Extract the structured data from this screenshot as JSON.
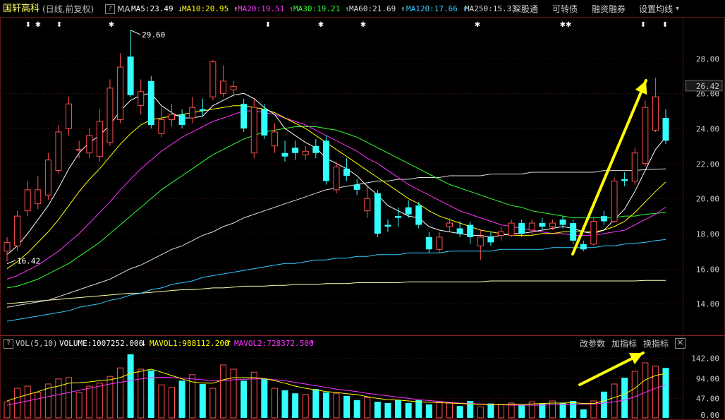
{
  "header": {
    "stock_name": "国轩高科",
    "period": "(日线,前复权)",
    "help_glyph": "?",
    "ma_label": "MA",
    "ma_items": [
      {
        "label": "MA5:23.49",
        "arrow": "↓",
        "color": "#ffffff"
      },
      {
        "label": "MA10:20.95",
        "arrow": "↑",
        "color": "#ffff00"
      },
      {
        "label": "MA20:19.51",
        "arrow": "↑",
        "color": "#ff33ff"
      },
      {
        "label": "MA30:19.21",
        "arrow": "↑",
        "color": "#33ff33"
      },
      {
        "label": "MA60:21.69",
        "arrow": "↑",
        "color": "#dddddd"
      },
      {
        "label": "MA120:17.66",
        "arrow": "↑",
        "color": "#33ccff"
      },
      {
        "label": "MA250:15.33",
        "arrow": "",
        "color": "#dddddd"
      }
    ],
    "buttons": [
      "深股通",
      "可转债",
      "融资融券",
      "设置均线"
    ],
    "dropdown_glyph": "▾"
  },
  "volume_header": {
    "help_glyph": "?",
    "indicator": "VOL(5,10)",
    "volume": "VOLUME:1007252.000",
    "volume_arrow": "↓",
    "mavol1": "MAVOL1:988112.200",
    "mavol1_arrow": "↑",
    "mavol2": "MAVOL2:728372.500",
    "mavol2_arrow": "↑",
    "buttons": [
      "改参数",
      "加指标",
      "换指标"
    ],
    "close_glyph": "✕"
  },
  "colors": {
    "up": "#ff5050",
    "down": "#33ffff",
    "ma5": "#ffffff",
    "ma10": "#ffff00",
    "ma20": "#ff33ff",
    "ma30": "#33ff33",
    "ma60": "#dddddd",
    "ma120": "#33ccff",
    "ma250": "#ffffaa",
    "arrow": "#ffff00",
    "grid": "#5a1818"
  },
  "chart_data": [
    {
      "type": "candlestick",
      "yticks": [
        28.0,
        26.0,
        24.0,
        22.0,
        20.0,
        18.0,
        16.0,
        14.0
      ],
      "ylim": [
        12.4,
        30.2
      ],
      "current_price": "26.42",
      "annotations": {
        "high": "29.60",
        "low": "16.42"
      },
      "event_markers": [
        "⬍",
        "✱",
        "⬍",
        "✱",
        "⬍",
        "✱",
        "✱",
        "✱✱",
        "⬍",
        "⬍"
      ],
      "candles": [
        {
          "o": 17.0,
          "c": 17.5,
          "h": 17.8,
          "l": 16.4
        },
        {
          "o": 17.3,
          "c": 19.0,
          "h": 19.3,
          "l": 17.0
        },
        {
          "o": 19.3,
          "c": 20.5,
          "h": 21.0,
          "l": 19.0
        },
        {
          "o": 19.7,
          "c": 20.5,
          "h": 21.3,
          "l": 19.4
        },
        {
          "o": 20.2,
          "c": 22.2,
          "h": 22.6,
          "l": 19.9
        },
        {
          "o": 21.6,
          "c": 23.8,
          "h": 24.2,
          "l": 21.4
        },
        {
          "o": 24.0,
          "c": 25.4,
          "h": 25.8,
          "l": 23.6
        },
        {
          "o": 22.8,
          "c": 22.8,
          "h": 23.3,
          "l": 22.3
        },
        {
          "o": 22.6,
          "c": 23.6,
          "h": 24.0,
          "l": 22.3
        },
        {
          "o": 22.4,
          "c": 24.4,
          "h": 25.1,
          "l": 22.1
        },
        {
          "o": 23.2,
          "c": 26.3,
          "h": 26.8,
          "l": 23.0
        },
        {
          "o": 24.5,
          "c": 27.5,
          "h": 28.3,
          "l": 24.3
        },
        {
          "o": 28.1,
          "c": 25.9,
          "h": 29.6,
          "l": 25.8
        },
        {
          "o": 25.3,
          "c": 26.1,
          "h": 26.8,
          "l": 24.8
        },
        {
          "o": 26.7,
          "c": 24.2,
          "h": 27.0,
          "l": 24.0
        },
        {
          "o": 23.7,
          "c": 24.5,
          "h": 25.2,
          "l": 23.5
        },
        {
          "o": 24.5,
          "c": 24.8,
          "h": 25.4,
          "l": 24.1
        },
        {
          "o": 24.8,
          "c": 24.2,
          "h": 25.1,
          "l": 24.0
        },
        {
          "o": 24.6,
          "c": 25.2,
          "h": 25.8,
          "l": 24.3
        },
        {
          "o": 25.1,
          "c": 25.0,
          "h": 25.7,
          "l": 24.7
        },
        {
          "o": 25.8,
          "c": 27.8,
          "h": 27.9,
          "l": 25.6
        },
        {
          "o": 26.0,
          "c": 26.7,
          "h": 27.6,
          "l": 25.8
        },
        {
          "o": 26.2,
          "c": 26.4,
          "h": 26.7,
          "l": 25.8
        },
        {
          "o": 25.4,
          "c": 24.0,
          "h": 25.7,
          "l": 23.8
        },
        {
          "o": 22.6,
          "c": 25.2,
          "h": 25.7,
          "l": 22.3
        },
        {
          "o": 25.1,
          "c": 23.6,
          "h": 25.4,
          "l": 23.4
        },
        {
          "o": 23.0,
          "c": 23.8,
          "h": 24.3,
          "l": 22.6
        },
        {
          "o": 22.6,
          "c": 22.4,
          "h": 23.3,
          "l": 22.1
        },
        {
          "o": 22.9,
          "c": 22.6,
          "h": 23.3,
          "l": 22.2
        },
        {
          "o": 22.5,
          "c": 22.7,
          "h": 23.0,
          "l": 22.2
        },
        {
          "o": 23.0,
          "c": 22.6,
          "h": 23.4,
          "l": 22.3
        },
        {
          "o": 23.3,
          "c": 21.0,
          "h": 23.6,
          "l": 20.8
        },
        {
          "o": 20.5,
          "c": 21.8,
          "h": 22.1,
          "l": 20.3
        },
        {
          "o": 21.7,
          "c": 21.3,
          "h": 22.3,
          "l": 21.0
        },
        {
          "o": 20.8,
          "c": 20.5,
          "h": 21.1,
          "l": 20.2
        },
        {
          "o": 19.3,
          "c": 20.0,
          "h": 20.8,
          "l": 18.9
        },
        {
          "o": 20.3,
          "c": 18.0,
          "h": 20.5,
          "l": 17.8
        },
        {
          "o": 18.5,
          "c": 18.4,
          "h": 18.8,
          "l": 18.1
        },
        {
          "o": 19.0,
          "c": 18.9,
          "h": 19.5,
          "l": 18.4
        },
        {
          "o": 19.5,
          "c": 19.1,
          "h": 19.9,
          "l": 18.9
        },
        {
          "o": 19.6,
          "c": 18.5,
          "h": 19.8,
          "l": 18.3
        },
        {
          "o": 17.8,
          "c": 17.1,
          "h": 18.1,
          "l": 16.9
        },
        {
          "o": 17.1,
          "c": 17.8,
          "h": 18.1,
          "l": 16.9
        },
        {
          "o": 18.4,
          "c": 18.6,
          "h": 18.9,
          "l": 18.1
        },
        {
          "o": 18.3,
          "c": 18.0,
          "h": 18.7,
          "l": 17.8
        },
        {
          "o": 18.5,
          "c": 17.8,
          "h": 18.7,
          "l": 17.4
        },
        {
          "o": 17.3,
          "c": 17.8,
          "h": 18.2,
          "l": 16.5
        },
        {
          "o": 17.8,
          "c": 17.5,
          "h": 18.1,
          "l": 17.3
        },
        {
          "o": 17.9,
          "c": 18.1,
          "h": 18.4,
          "l": 17.6
        },
        {
          "o": 17.9,
          "c": 18.6,
          "h": 18.8,
          "l": 17.8
        },
        {
          "o": 18.6,
          "c": 18.0,
          "h": 18.8,
          "l": 17.8
        },
        {
          "o": 18.2,
          "c": 18.6,
          "h": 18.8,
          "l": 17.9
        },
        {
          "o": 18.6,
          "c": 18.4,
          "h": 18.9,
          "l": 18.2
        },
        {
          "o": 18.4,
          "c": 18.6,
          "h": 18.8,
          "l": 18.2
        },
        {
          "o": 18.8,
          "c": 18.5,
          "h": 19.0,
          "l": 18.3
        },
        {
          "o": 18.6,
          "c": 17.6,
          "h": 18.8,
          "l": 17.4
        },
        {
          "o": 17.4,
          "c": 17.1,
          "h": 17.6,
          "l": 17.0
        },
        {
          "o": 17.4,
          "c": 18.7,
          "h": 18.9,
          "l": 17.3
        },
        {
          "o": 19.0,
          "c": 18.7,
          "h": 19.3,
          "l": 18.5
        },
        {
          "o": 18.7,
          "c": 21.0,
          "h": 21.2,
          "l": 18.6
        },
        {
          "o": 21.1,
          "c": 21.0,
          "h": 21.5,
          "l": 20.7
        },
        {
          "o": 21.0,
          "c": 22.6,
          "h": 22.9,
          "l": 20.8
        },
        {
          "o": 22.0,
          "c": 25.2,
          "h": 25.6,
          "l": 21.8
        },
        {
          "o": 23.9,
          "c": 25.8,
          "h": 26.9,
          "l": 23.8
        },
        {
          "o": 24.6,
          "c": 23.3,
          "h": 25.1,
          "l": 23.1
        }
      ],
      "ma_lines": {
        "ma5": [
          16.8,
          17.3,
          18.0,
          18.8,
          19.6,
          20.6,
          21.7,
          22.6,
          23.2,
          23.6,
          24.2,
          25.0,
          25.6,
          25.9,
          26.0,
          25.3,
          24.9,
          24.6,
          24.6,
          24.7,
          25.3,
          25.6,
          25.9,
          26.0,
          25.7,
          25.2,
          24.8,
          24.0,
          23.6,
          23.2,
          22.9,
          22.3,
          22.0,
          21.7,
          21.3,
          20.7,
          20.2,
          19.6,
          19.3,
          19.0,
          18.9,
          18.4,
          18.2,
          18.1,
          18.0,
          17.9,
          17.9,
          17.8,
          17.9,
          18.0,
          18.0,
          18.1,
          18.2,
          18.3,
          18.4,
          18.3,
          18.1,
          18.0,
          18.2,
          18.8,
          19.4,
          20.4,
          21.6,
          22.8,
          23.5
        ],
        "ma10": [
          16.0,
          16.4,
          16.9,
          17.5,
          18.1,
          18.8,
          19.6,
          20.4,
          21.1,
          21.7,
          22.4,
          23.1,
          23.7,
          24.2,
          24.5,
          24.6,
          24.7,
          24.8,
          24.9,
          25.0,
          25.1,
          25.2,
          25.3,
          25.3,
          25.2,
          25.1,
          24.9,
          24.6,
          24.3,
          24.0,
          23.6,
          23.2,
          22.8,
          22.4,
          22.0,
          21.6,
          21.2,
          20.8,
          20.4,
          20.0,
          19.7,
          19.3,
          19.0,
          18.8,
          18.6,
          18.4,
          18.2,
          18.1,
          18.0,
          17.9,
          17.9,
          17.9,
          18.0,
          18.0,
          18.1,
          18.1,
          18.1,
          18.1,
          18.2,
          18.4,
          18.7,
          19.2,
          19.8,
          20.4,
          20.95
        ],
        "ma20": [
          15.4,
          15.6,
          15.9,
          16.2,
          16.6,
          17.0,
          17.5,
          18.0,
          18.6,
          19.2,
          19.8,
          20.5,
          21.1,
          21.7,
          22.2,
          22.7,
          23.1,
          23.5,
          23.8,
          24.1,
          24.4,
          24.6,
          24.8,
          25.0,
          25.0,
          24.9,
          24.8,
          24.6,
          24.4,
          24.2,
          23.9,
          23.6,
          23.3,
          23.0,
          22.7,
          22.3,
          22.0,
          21.6,
          21.2,
          20.8,
          20.5,
          20.2,
          19.9,
          19.6,
          19.3,
          19.1,
          18.9,
          18.7,
          18.5,
          18.4,
          18.3,
          18.2,
          18.1,
          18.0,
          18.0,
          17.9,
          17.9,
          17.9,
          18.0,
          18.1,
          18.2,
          18.5,
          18.8,
          19.1,
          19.51
        ],
        "ma30": [
          14.9,
          15.0,
          15.2,
          15.4,
          15.7,
          16.0,
          16.3,
          16.7,
          17.1,
          17.5,
          18.0,
          18.5,
          19.0,
          19.5,
          20.0,
          20.5,
          20.9,
          21.3,
          21.7,
          22.1,
          22.5,
          22.8,
          23.1,
          23.4,
          23.6,
          23.8,
          23.9,
          24.0,
          24.1,
          24.1,
          24.1,
          24.0,
          23.9,
          23.7,
          23.5,
          23.2,
          22.9,
          22.6,
          22.3,
          22.0,
          21.7,
          21.4,
          21.1,
          20.8,
          20.6,
          20.4,
          20.2,
          20.0,
          19.8,
          19.6,
          19.5,
          19.3,
          19.2,
          19.1,
          19.0,
          18.9,
          18.9,
          18.9,
          18.9,
          18.9,
          19.0,
          19.0,
          19.1,
          19.15,
          19.21
        ],
        "ma60": [
          13.8,
          13.9,
          14.0,
          14.1,
          14.2,
          14.4,
          14.6,
          14.8,
          15.0,
          15.2,
          15.4,
          15.7,
          16.0,
          16.2,
          16.5,
          16.8,
          17.1,
          17.3,
          17.6,
          17.9,
          18.1,
          18.4,
          18.6,
          18.9,
          19.1,
          19.3,
          19.5,
          19.7,
          19.9,
          20.1,
          20.3,
          20.5,
          20.6,
          20.7,
          20.8,
          20.9,
          21.0,
          21.0,
          21.1,
          21.1,
          21.2,
          21.2,
          21.2,
          21.3,
          21.3,
          21.3,
          21.3,
          21.4,
          21.4,
          21.4,
          21.4,
          21.5,
          21.5,
          21.5,
          21.5,
          21.5,
          21.5,
          21.5,
          21.6,
          21.6,
          21.6,
          21.6,
          21.65,
          21.67,
          21.69
        ],
        "ma120": [
          13.0,
          13.1,
          13.2,
          13.3,
          13.4,
          13.5,
          13.6,
          13.8,
          13.9,
          14.0,
          14.2,
          14.3,
          14.5,
          14.6,
          14.8,
          14.9,
          15.1,
          15.2,
          15.3,
          15.5,
          15.6,
          15.7,
          15.8,
          15.9,
          16.0,
          16.1,
          16.2,
          16.3,
          16.3,
          16.4,
          16.5,
          16.5,
          16.6,
          16.6,
          16.7,
          16.7,
          16.8,
          16.8,
          16.8,
          16.9,
          16.9,
          16.9,
          16.9,
          17.0,
          17.0,
          17.0,
          17.0,
          17.0,
          17.1,
          17.1,
          17.1,
          17.1,
          17.1,
          17.2,
          17.2,
          17.2,
          17.2,
          17.2,
          17.3,
          17.3,
          17.4,
          17.45,
          17.5,
          17.6,
          17.66
        ],
        "ma250": [
          14.0,
          14.05,
          14.1,
          14.15,
          14.2,
          14.25,
          14.3,
          14.35,
          14.4,
          14.45,
          14.5,
          14.55,
          14.6,
          14.6,
          14.65,
          14.7,
          14.75,
          14.8,
          14.8,
          14.85,
          14.9,
          14.9,
          14.95,
          15.0,
          15.0,
          15.0,
          15.05,
          15.05,
          15.1,
          15.1,
          15.1,
          15.15,
          15.15,
          15.15,
          15.2,
          15.2,
          15.2,
          15.2,
          15.2,
          15.25,
          15.25,
          15.25,
          15.25,
          15.25,
          15.25,
          15.25,
          15.25,
          15.3,
          15.3,
          15.3,
          15.3,
          15.3,
          15.3,
          15.3,
          15.3,
          15.3,
          15.3,
          15.3,
          15.3,
          15.3,
          15.3,
          15.3,
          15.33,
          15.33,
          15.33
        ]
      }
    },
    {
      "type": "bar",
      "yticks": [
        "142.00",
        "94.00",
        "47.00",
        "0.00"
      ],
      "ylim": [
        0,
        160
      ],
      "volumes": [
        38,
        70,
        75,
        60,
        80,
        92,
        95,
        60,
        75,
        82,
        98,
        118,
        150,
        115,
        112,
        78,
        72,
        88,
        102,
        80,
        70,
        125,
        115,
        88,
        108,
        92,
        70,
        65,
        58,
        55,
        68,
        60,
        58,
        52,
        42,
        48,
        38,
        35,
        42,
        35,
        42,
        32,
        38,
        36,
        28,
        40,
        26,
        34,
        32,
        35,
        30,
        38,
        34,
        40,
        36,
        40,
        20,
        40,
        62,
        80,
        95,
        110,
        130,
        122,
        118
      ],
      "mavol1": [
        40,
        48,
        55,
        62,
        70,
        75,
        82,
        83,
        85,
        88,
        90,
        95,
        105,
        110,
        115,
        108,
        100,
        92,
        85,
        82,
        82,
        90,
        95,
        95,
        95,
        93,
        88,
        82,
        75,
        70,
        66,
        62,
        60,
        57,
        55,
        50,
        46,
        43,
        42,
        40,
        38,
        37,
        36,
        35,
        34,
        33,
        32,
        31,
        31,
        32,
        32,
        33,
        34,
        35,
        35,
        36,
        34,
        34,
        40,
        48,
        56,
        70,
        90,
        100,
        105
      ],
      "mavol2": [
        30,
        35,
        40,
        45,
        50,
        55,
        60,
        65,
        70,
        75,
        80,
        84,
        88,
        92,
        95,
        96,
        95,
        94,
        92,
        90,
        88,
        88,
        90,
        91,
        92,
        92,
        90,
        88,
        84,
        80,
        76,
        72,
        68,
        65,
        62,
        58,
        55,
        52,
        49,
        46,
        43,
        41,
        39,
        37,
        35,
        34,
        33,
        32,
        31,
        30,
        30,
        30,
        30,
        31,
        31,
        32,
        32,
        33,
        35,
        38,
        42,
        50,
        60,
        70,
        78
      ]
    }
  ]
}
